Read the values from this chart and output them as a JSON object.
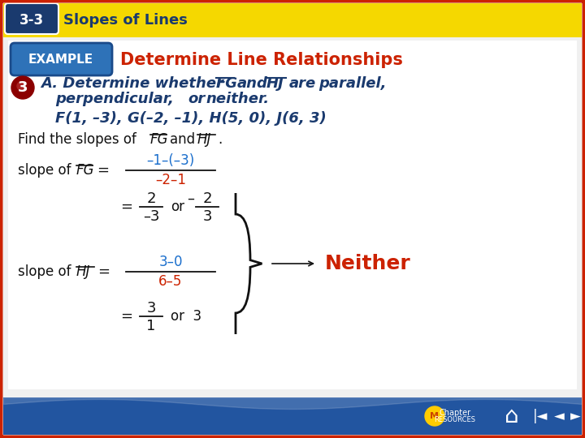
{
  "bg_color": "#f0f0f0",
  "header_bg": "#f5d800",
  "header_badge_bg": "#1a3a6e",
  "header_text": "3-3",
  "header_label": "Slopes of Lines",
  "header_label_color": "#1a3a6e",
  "outer_border_color": "#cc2200",
  "content_bg": "#ffffff",
  "example_bg_grad1": "#4a90d9",
  "example_bg_grad2": "#2255a0",
  "example_text": "EXAMPLE",
  "title_text": "Determine Line Relationships",
  "title_color": "#cc2200",
  "step_circle_color": "#8b0000",
  "step_number": "3",
  "body_color": "#1a3a6e",
  "black_color": "#111111",
  "red_color": "#cc2200",
  "blue_num_color": "#1a6ecc",
  "footer_bg": "#2255a0",
  "footer_wave_color": "#3399ff"
}
